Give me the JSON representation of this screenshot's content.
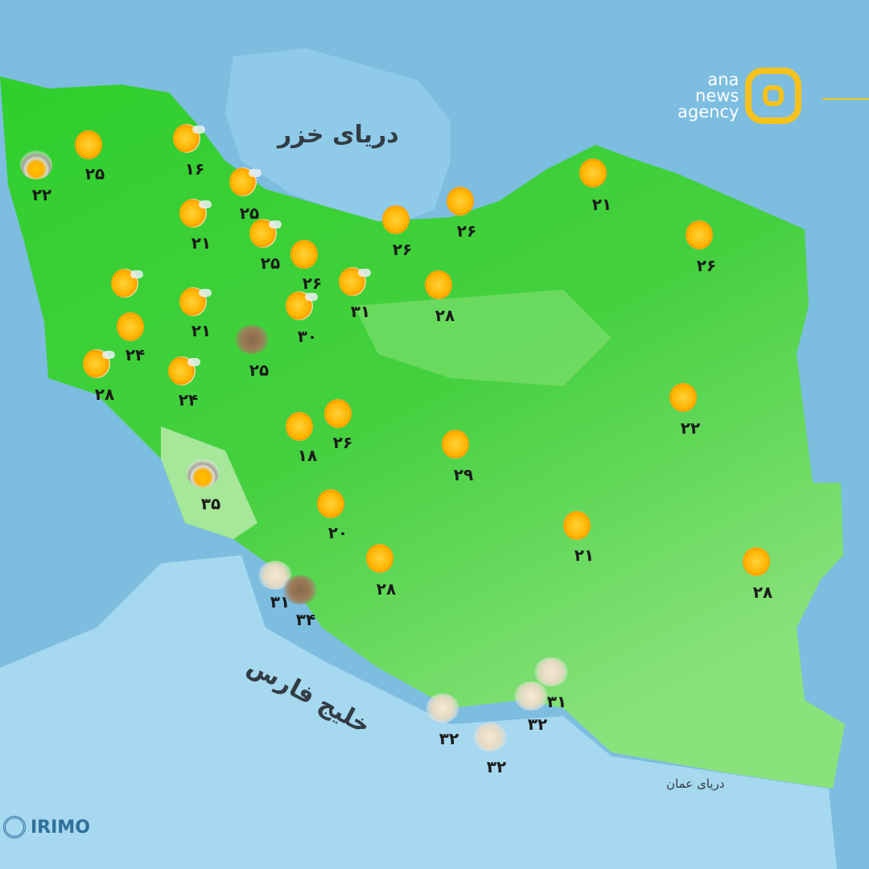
{
  "map": {
    "colors": {
      "sea": "#7cbde0",
      "land": "#3ecf3a",
      "land_light": "#9be88f",
      "neighbor": "#a6d8ef"
    },
    "sea_labels": {
      "caspian": "دریای خزر",
      "persian_gulf": "خلیج فارس",
      "oman": "دریای عمان"
    }
  },
  "stations": [
    {
      "icon": "cloud-sun-icon",
      "temp": "۲۲"
    },
    {
      "icon": "sun-icon",
      "temp": "۲۵"
    },
    {
      "icon": "partly-sunny-icon",
      "temp": "۱۶"
    },
    {
      "icon": "partly-sunny-icon",
      "temp": "۲۵"
    },
    {
      "icon": "partly-sunny-icon",
      "temp": "۲۱"
    },
    {
      "icon": "partly-sunny-icon",
      "temp": "۲۵"
    },
    {
      "icon": "sun-icon",
      "temp": "۲۶"
    },
    {
      "icon": "partly-sunny-icon",
      "temp": "۳۱"
    },
    {
      "icon": "partly-sunny-icon",
      "temp": "۳۰"
    },
    {
      "icon": "sun-icon",
      "temp": "۲۶"
    },
    {
      "icon": "sun-icon",
      "temp": "۲۶"
    },
    {
      "icon": "sun-icon",
      "temp": "۲۸"
    },
    {
      "icon": "sun-icon",
      "temp": "۲۱"
    },
    {
      "icon": "sun-icon",
      "temp": "۲۶"
    },
    {
      "icon": "partly-sunny-icon",
      "temp": ""
    },
    {
      "icon": "partly-sunny-icon",
      "temp": "۲۱"
    },
    {
      "icon": "dust-icon",
      "temp": "۲۵"
    },
    {
      "icon": "sun-icon",
      "temp": "۲۴"
    },
    {
      "icon": "partly-sunny-icon",
      "temp": "۲۸"
    },
    {
      "icon": "partly-sunny-icon",
      "temp": "۲۴"
    },
    {
      "icon": "sun-icon",
      "temp": "۱۸"
    },
    {
      "icon": "sun-icon",
      "temp": "۲۶"
    },
    {
      "icon": "sun-icon",
      "temp": "۲۹"
    },
    {
      "icon": "sun-icon",
      "temp": "۲۲"
    },
    {
      "icon": "cloud-sun-icon",
      "temp": "۳۵"
    },
    {
      "icon": "sun-icon",
      "temp": "۲۰"
    },
    {
      "icon": "sun-icon",
      "temp": "۲۸"
    },
    {
      "icon": "sun-icon",
      "temp": "۲۱"
    },
    {
      "icon": "sun-icon",
      "temp": "۲۸"
    },
    {
      "icon": "cloud-icon",
      "temp": "۳۱"
    },
    {
      "icon": "dust-icon",
      "temp": "۳۴"
    },
    {
      "icon": "cloud-icon",
      "temp": "۳۲"
    },
    {
      "icon": "cloud-icon",
      "temp": "۳۲"
    },
    {
      "icon": "cloud-icon",
      "temp": "۳۲"
    },
    {
      "icon": "cloud-icon",
      "temp": "۳۱"
    }
  ],
  "branding": {
    "agency_lines": [
      "ana",
      "news",
      "agency"
    ],
    "agency_color": "#f7c21c",
    "source": "IRIMO"
  }
}
